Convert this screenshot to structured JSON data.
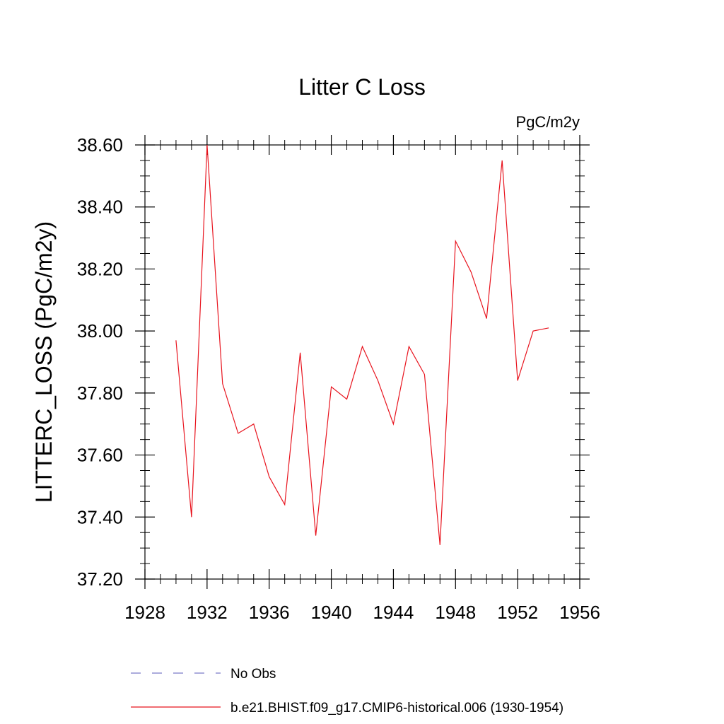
{
  "chart_data": {
    "type": "line",
    "title": "Litter C Loss",
    "units_label": "PgC/m2y",
    "xlabel": "",
    "ylabel": "LITTERC_LOSS  (PgC/m2y)",
    "xlim": [
      1928,
      1956
    ],
    "ylim": [
      37.2,
      38.6
    ],
    "x_ticks": [
      "1928",
      "1932",
      "1936",
      "1940",
      "1944",
      "1948",
      "1952",
      "1956"
    ],
    "y_ticks": [
      "37.20",
      "37.40",
      "37.60",
      "37.80",
      "38.00",
      "38.20",
      "38.40",
      "38.60"
    ],
    "grid": false,
    "legend_position": "bottom",
    "series": [
      {
        "name": "b.e21.BHIST.f09_g17.CMIP6-historical.006 (1930-1954)",
        "color": "#e8141e",
        "style": "solid",
        "x": [
          1930,
          1931,
          1932,
          1933,
          1934,
          1935,
          1936,
          1937,
          1938,
          1939,
          1940,
          1941,
          1942,
          1943,
          1944,
          1945,
          1946,
          1947,
          1948,
          1949,
          1950,
          1951,
          1952,
          1953,
          1954
        ],
        "values": [
          37.97,
          37.4,
          38.6,
          37.83,
          37.67,
          37.7,
          37.53,
          37.44,
          37.93,
          37.34,
          37.82,
          37.78,
          37.95,
          37.84,
          37.7,
          37.95,
          37.86,
          37.31,
          38.29,
          38.19,
          38.04,
          38.55,
          37.84,
          38.0,
          38.01
        ]
      }
    ],
    "legend": [
      {
        "label": "No Obs",
        "color": "#7b7bc8",
        "style": "dashed"
      },
      {
        "label": "b.e21.BHIST.f09_g17.CMIP6-historical.006 (1930-1954)",
        "color": "#e8141e",
        "style": "solid"
      }
    ]
  }
}
